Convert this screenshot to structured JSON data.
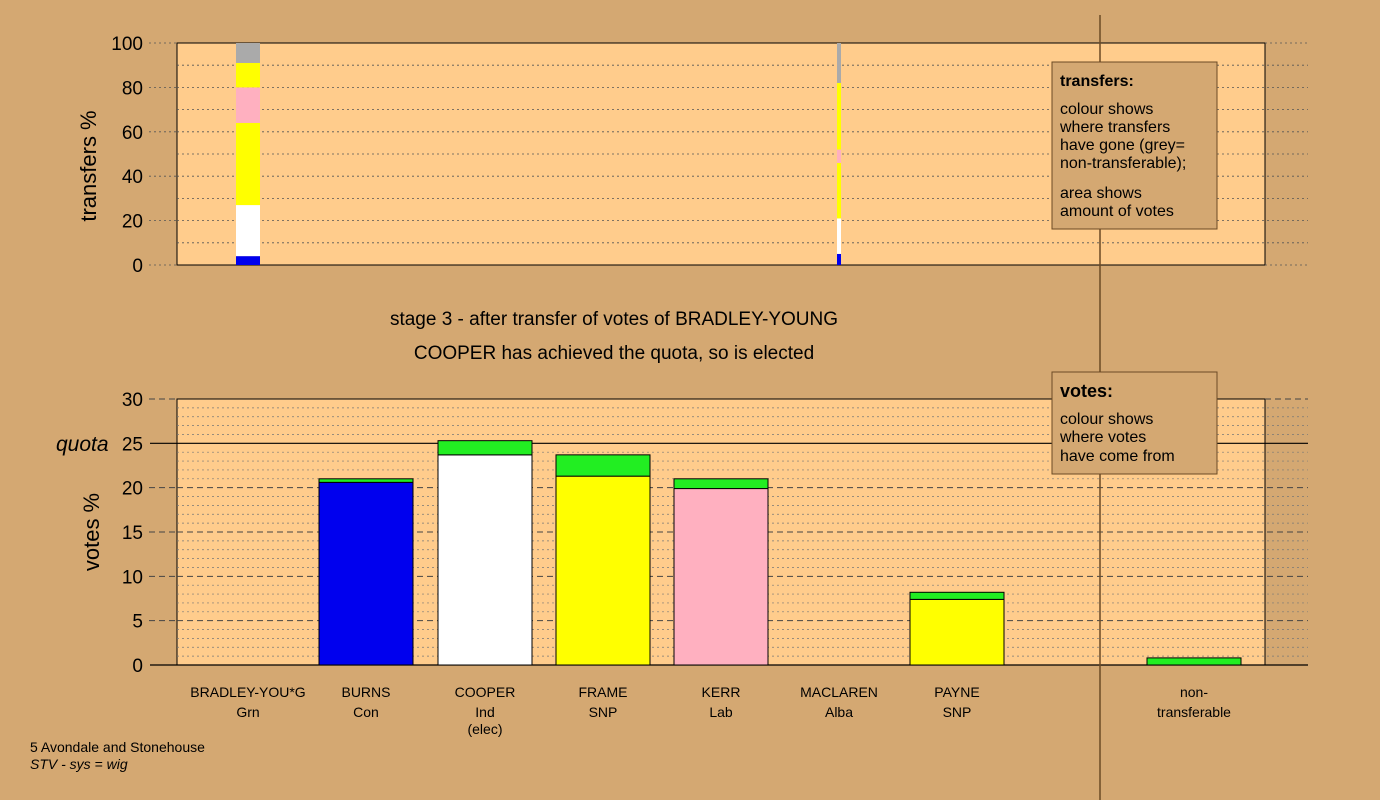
{
  "colors": {
    "background": "#d4a872",
    "plot_bg": "#ffcc8c",
    "legend_bg": "#d4a872",
    "quota_line": "#000000",
    "party": {
      "Grn": "#22ee22",
      "Con": "#0000ee",
      "Ind": "#ffffff",
      "SNP": "#ffff00",
      "Lab": "#ffb0c0",
      "Alba": "#8000ff",
      "nontransferable": "#aaaaaa"
    }
  },
  "stage_text": {
    "line1": "stage 3 - after transfer of votes of BRADLEY-YOUNG",
    "line2": "COOPER has achieved the quota, so is elected"
  },
  "legend_transfers": {
    "title": "transfers:",
    "lines": [
      "colour shows",
      "where transfers",
      "have gone (grey=",
      "non-transferable);",
      "area shows",
      "amount of votes"
    ]
  },
  "legend_votes": {
    "title": "votes:",
    "lines": [
      "colour shows",
      "where votes",
      "have come from"
    ]
  },
  "footer": {
    "ward": "5 Avondale and Stonehouse",
    "system": "STV - sys = wig"
  },
  "chart_data": [
    {
      "type": "bar",
      "name": "transfers",
      "ylabel": "transfers %",
      "ylim": [
        0,
        100
      ],
      "yticks": [
        0,
        20,
        40,
        60,
        80,
        100
      ],
      "bars": [
        {
          "slot": 0,
          "width": "full",
          "segments": [
            {
              "party": "Con",
              "value": 4
            },
            {
              "party": "Ind",
              "value": 23
            },
            {
              "party": "SNP",
              "value": 37
            },
            {
              "party": "Lab",
              "value": 16
            },
            {
              "party": "SNP",
              "value": 11
            },
            {
              "party": "nontransferable",
              "value": 9
            }
          ]
        },
        {
          "slot": 5,
          "width": "thin",
          "segments": [
            {
              "party": "Con",
              "value": 5
            },
            {
              "party": "Ind",
              "value": 16
            },
            {
              "party": "SNP",
              "value": 25
            },
            {
              "party": "Lab",
              "value": 6
            },
            {
              "party": "SNP",
              "value": 30
            },
            {
              "party": "nontransferable",
              "value": 18
            }
          ]
        }
      ]
    },
    {
      "type": "bar",
      "name": "votes",
      "ylabel": "votes %",
      "ylim": [
        0,
        30
      ],
      "yticks": [
        0,
        5,
        10,
        15,
        20,
        25,
        30
      ],
      "quota": 25,
      "quota_label": "quota",
      "candidates": [
        {
          "name": "BRADLEY-YOU*G",
          "party": "Grn",
          "note": "",
          "segments": []
        },
        {
          "name": "BURNS",
          "party": "Con",
          "note": "",
          "segments": [
            {
              "party": "Con",
              "value": 20.6
            },
            {
              "party": "Grn",
              "value": 0.4
            }
          ]
        },
        {
          "name": "COOPER",
          "party": "Ind",
          "note": "(elec)",
          "segments": [
            {
              "party": "Ind",
              "value": 23.7
            },
            {
              "party": "Grn",
              "value": 1.6
            }
          ]
        },
        {
          "name": "FRAME",
          "party": "SNP",
          "note": "",
          "segments": [
            {
              "party": "SNP",
              "value": 21.3
            },
            {
              "party": "Grn",
              "value": 2.4
            }
          ]
        },
        {
          "name": "KERR",
          "party": "Lab",
          "note": "",
          "segments": [
            {
              "party": "Lab",
              "value": 19.9
            },
            {
              "party": "Grn",
              "value": 1.1
            }
          ]
        },
        {
          "name": "MACLAREN",
          "party": "Alba",
          "note": "",
          "segments": []
        },
        {
          "name": "PAYNE",
          "party": "SNP",
          "note": "",
          "segments": [
            {
              "party": "SNP",
              "value": 7.4
            },
            {
              "party": "Grn",
              "value": 0.8
            }
          ]
        }
      ],
      "nontransferable": {
        "label_lines": [
          "non-",
          "transferable"
        ],
        "segments": [
          {
            "party": "Grn",
            "value": 0.8
          }
        ]
      }
    }
  ]
}
